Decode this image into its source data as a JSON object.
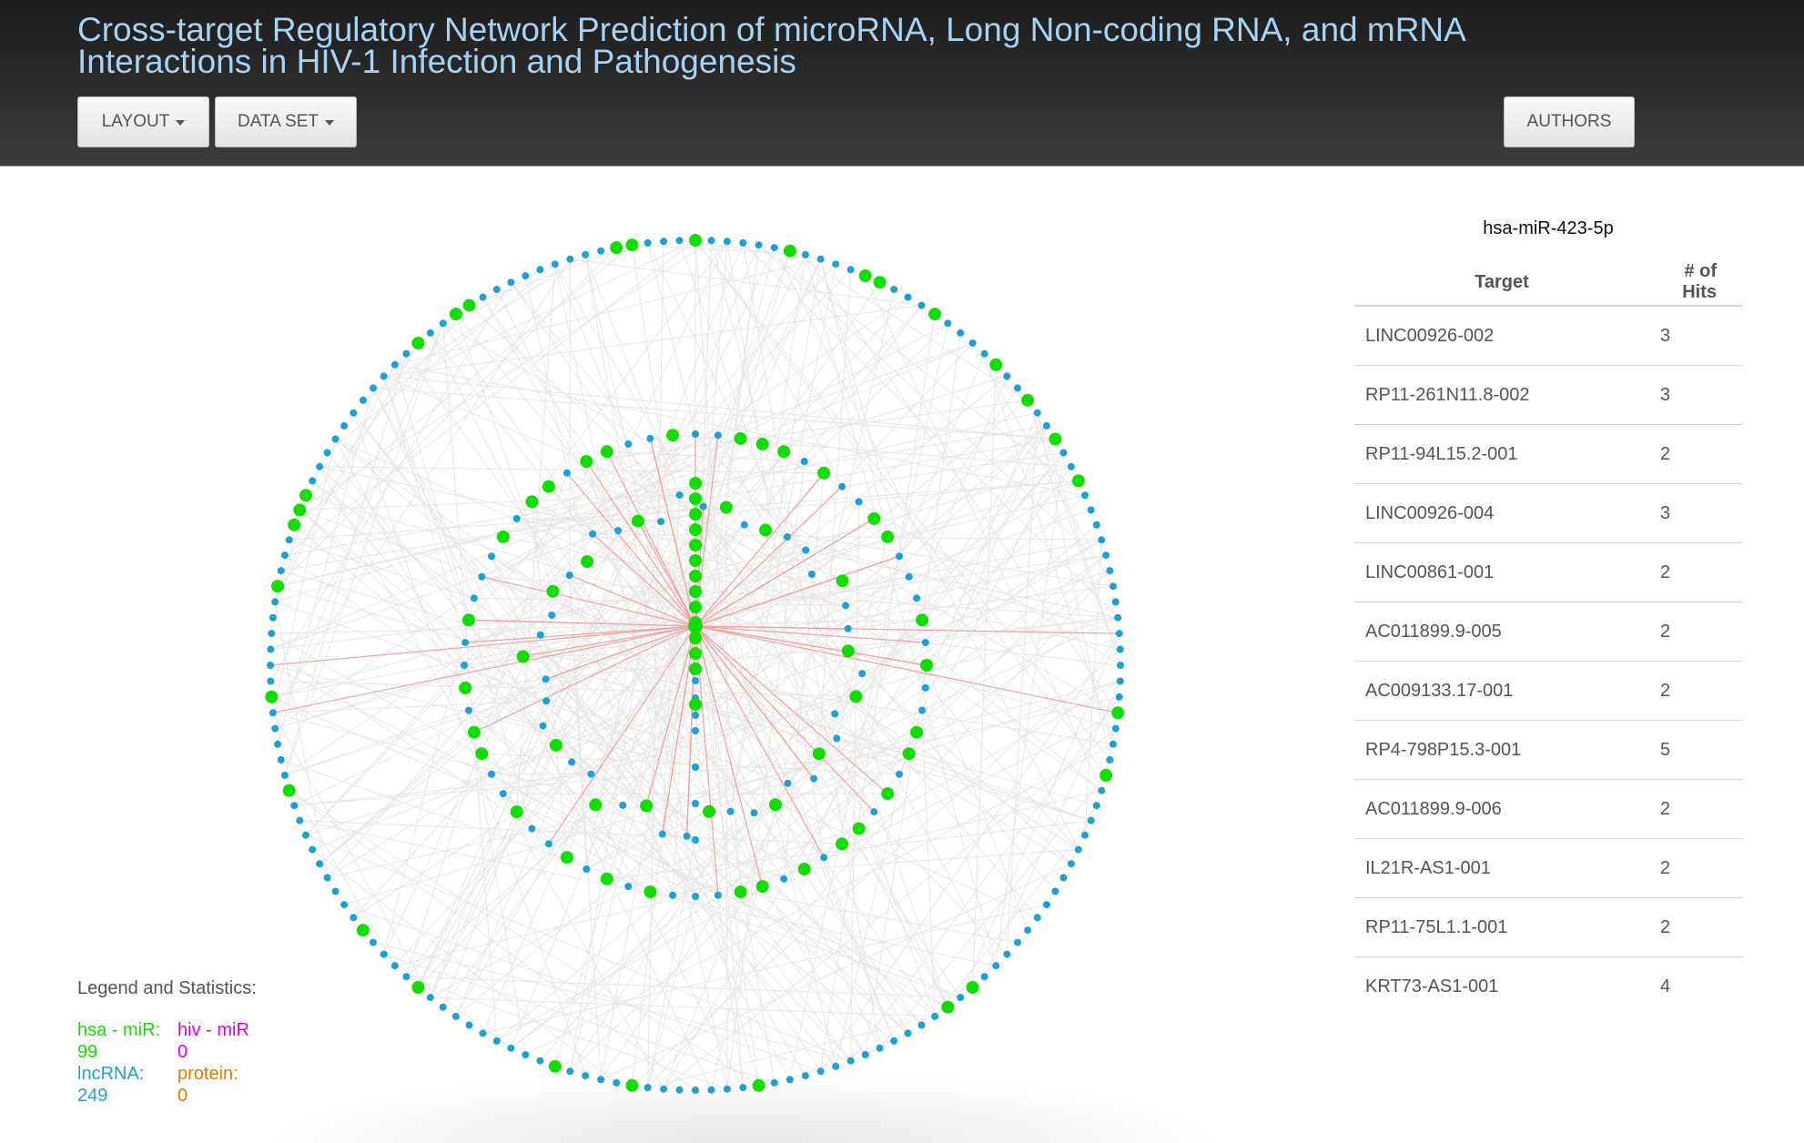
{
  "header": {
    "title": "Cross-target Regulatory Network Prediction of microRNA, Long Non-coding RNA, and mRNA Interactions in HIV-1 Infection and Pathogenesis",
    "layout_label": "LAYOUT",
    "dataset_label": "DATA SET",
    "authors_label": "AUTHORS"
  },
  "legend": {
    "title": "Legend and Statistics:",
    "hsa_label": "hsa - miR:",
    "hsa_count": "99",
    "hiv_label": "hiv - miR",
    "hiv_count": "0",
    "lnc_label": "lncRNA:",
    "lnc_count": "249",
    "protein_label": "protein:",
    "protein_count": "0"
  },
  "colors": {
    "mirna_node": "#11dd00",
    "lncrna_node": "#1ba0d7",
    "selected_edge": "#f2a0a0",
    "edge": "#e6e6e6"
  },
  "panel": {
    "selected_node": "hsa-miR-423-5p",
    "col_target": "Target",
    "col_hits": "# of Hits",
    "rows": [
      {
        "target": "LINC00926-002",
        "hits": "3"
      },
      {
        "target": "RP11-261N11.8-002",
        "hits": "3"
      },
      {
        "target": "RP11-94L15.2-001",
        "hits": "2"
      },
      {
        "target": "LINC00926-004",
        "hits": "3"
      },
      {
        "target": "LINC00861-001",
        "hits": "2"
      },
      {
        "target": "AC011899.9-005",
        "hits": "2"
      },
      {
        "target": "AC009133.17-001",
        "hits": "2"
      },
      {
        "target": "RP4-798P15.3-001",
        "hits": "5"
      },
      {
        "target": "AC011899.9-006",
        "hits": "2"
      },
      {
        "target": "IL21R-AS1-001",
        "hits": "2"
      },
      {
        "target": "RP11-75L1.1-001",
        "hits": "2"
      },
      {
        "target": "KRT73-AS1-001",
        "hits": "4"
      }
    ]
  }
}
